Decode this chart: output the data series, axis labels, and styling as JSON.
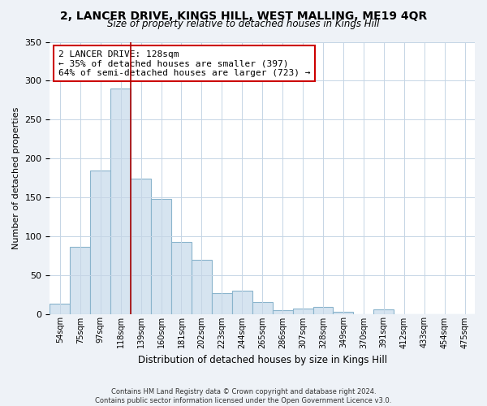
{
  "title": "2, LANCER DRIVE, KINGS HILL, WEST MALLING, ME19 4QR",
  "subtitle": "Size of property relative to detached houses in Kings Hill",
  "xlabel": "Distribution of detached houses by size in Kings Hill",
  "ylabel": "Number of detached properties",
  "categories": [
    "54sqm",
    "75sqm",
    "97sqm",
    "118sqm",
    "139sqm",
    "160sqm",
    "181sqm",
    "202sqm",
    "223sqm",
    "244sqm",
    "265sqm",
    "286sqm",
    "307sqm",
    "328sqm",
    "349sqm",
    "370sqm",
    "391sqm",
    "412sqm",
    "433sqm",
    "454sqm",
    "475sqm"
  ],
  "values": [
    13,
    86,
    184,
    290,
    174,
    148,
    92,
    70,
    27,
    30,
    15,
    5,
    7,
    9,
    3,
    0,
    6,
    0,
    0,
    0,
    0
  ],
  "bar_color": "#d6e4f0",
  "bar_edge_color": "#8ab4cc",
  "highlight_line_color": "#aa0000",
  "annotation_text": "2 LANCER DRIVE: 128sqm\n← 35% of detached houses are smaller (397)\n64% of semi-detached houses are larger (723) →",
  "annotation_box_color": "#ffffff",
  "annotation_box_edge_color": "#cc0000",
  "ylim": [
    0,
    350
  ],
  "yticks": [
    0,
    50,
    100,
    150,
    200,
    250,
    300,
    350
  ],
  "footer_line1": "Contains HM Land Registry data © Crown copyright and database right 2024.",
  "footer_line2": "Contains public sector information licensed under the Open Government Licence v3.0.",
  "bg_color": "#eef2f7",
  "plot_bg_color": "#ffffff",
  "grid_color": "#c5d5e5"
}
